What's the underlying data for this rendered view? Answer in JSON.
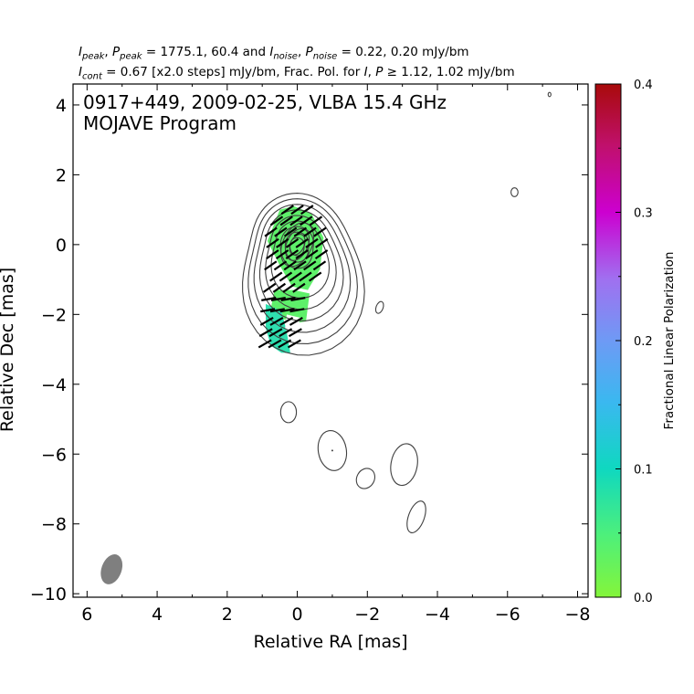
{
  "header": {
    "line1": "I_peak, P_peak = 1775.1, 60.4 and I_noise, P_noise = 0.22, 0.20 mJy/bm",
    "line2": "I_cont = 0.67 [x2.0 steps] mJy/bm, Frac. Pol. for I, P ≥ 1.12, 1.02 mJy/bm"
  },
  "chart_data": {
    "type": "contour",
    "title": "0917+449, 2009-02-25, VLBA 15.4 GHz",
    "subtitle": "MOJAVE Program",
    "xlabel": "Relative RA [mas]",
    "ylabel": "Relative Dec [mas]",
    "xlim": [
      6.4,
      -8.3
    ],
    "ylim": [
      -10.1,
      4.6
    ],
    "x_ticks": [
      6,
      4,
      2,
      0,
      -2,
      -4,
      -6,
      -8
    ],
    "x_tick_labels": [
      "6",
      "4",
      "2",
      "0",
      "−2",
      "−4",
      "−6",
      "−8"
    ],
    "y_ticks": [
      4,
      2,
      0,
      -2,
      -4,
      -6,
      -8,
      -10
    ],
    "y_tick_labels": [
      "4",
      "2",
      "0",
      "−2",
      "−4",
      "−6",
      "−8",
      "−10"
    ],
    "contour_levels_mJy": [
      0.67,
      1.34,
      2.68,
      5.36,
      10.72,
      21.44,
      42.88,
      85.76,
      171.52
    ],
    "core": {
      "x": 0.0,
      "y": 0.0
    },
    "jet_ridge": [
      [
        0.0,
        0.0
      ],
      [
        0.2,
        -1.0
      ],
      [
        0.3,
        -2.0
      ],
      [
        0.4,
        -2.8
      ],
      [
        0.3,
        -3.5
      ]
    ],
    "isolated_components": [
      {
        "x": 0.25,
        "y": -4.8
      },
      {
        "x": -1.0,
        "y": -5.9
      },
      {
        "x": -1.95,
        "y": -6.7
      },
      {
        "x": -3.05,
        "y": -6.3
      },
      {
        "x": -3.4,
        "y": -7.8
      },
      {
        "x": -2.35,
        "y": -1.8
      },
      {
        "x": -6.2,
        "y": 1.5
      },
      {
        "x": -7.2,
        "y": 4.3
      }
    ],
    "fractional_polarization_range": [
      0.02,
      0.12
    ],
    "beam": {
      "x": 5.3,
      "y": -9.3
    },
    "colorbar": {
      "label": "Fractional Linear Polarization",
      "range": [
        0.0,
        0.4
      ],
      "ticks": [
        0.0,
        0.1,
        0.2,
        0.3,
        0.4
      ],
      "tick_labels": [
        "0.0",
        "0.1",
        "0.2",
        "0.3",
        "0.4"
      ]
    }
  }
}
